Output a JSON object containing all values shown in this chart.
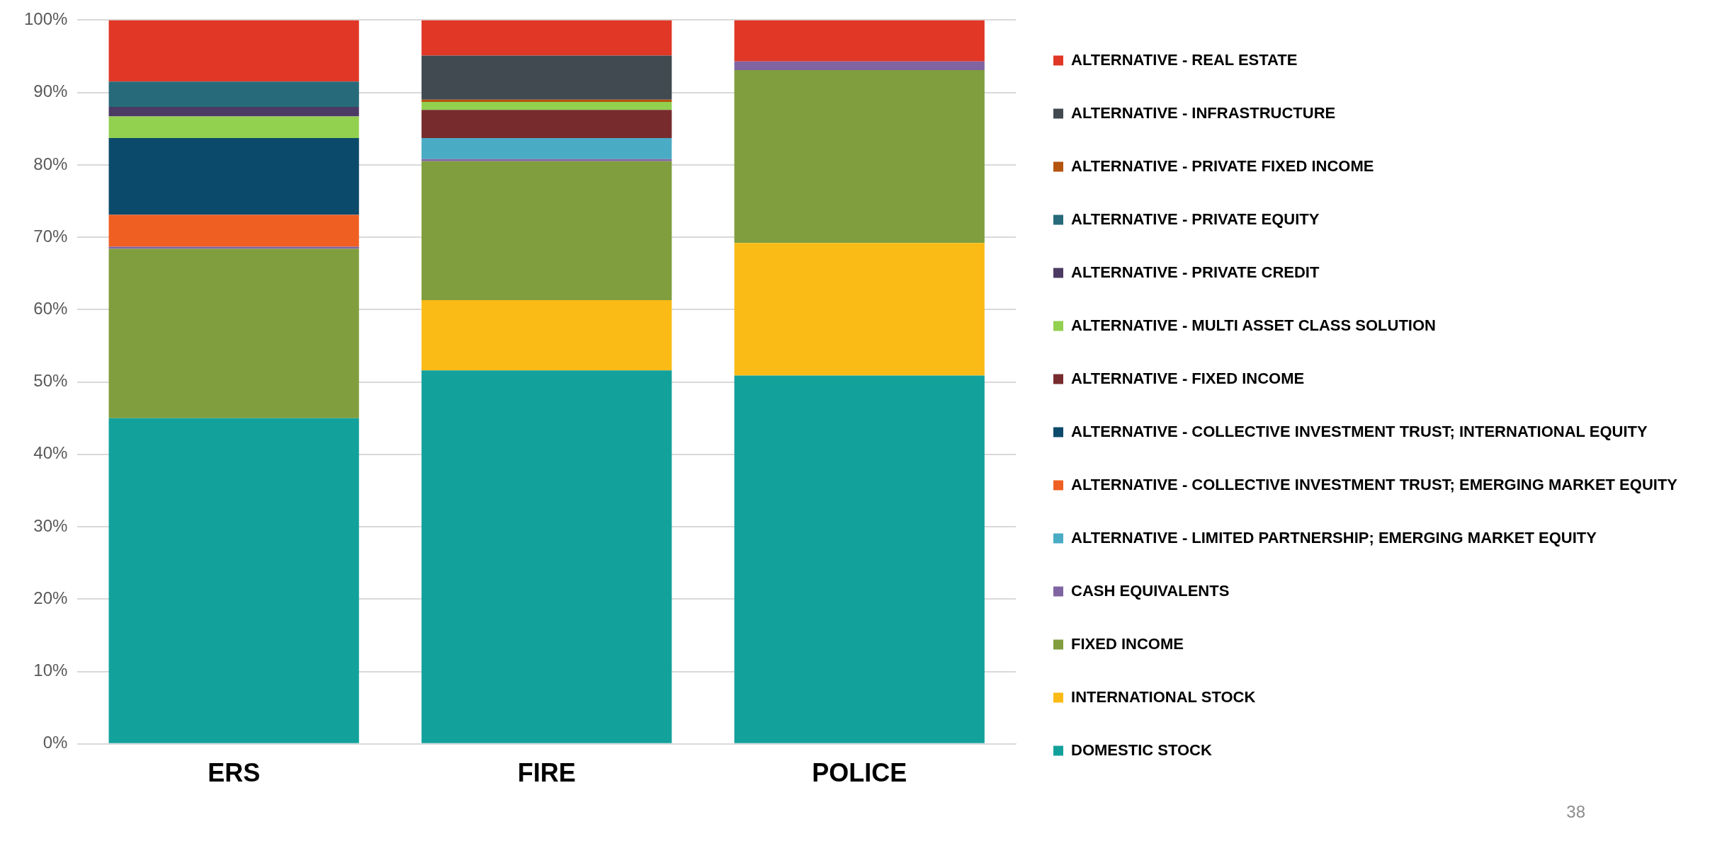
{
  "chart_data": {
    "type": "bar",
    "stacked": true,
    "categories": [
      "ERS",
      "FIRE",
      "POLICE"
    ],
    "ylim": [
      0,
      100
    ],
    "yticks": [
      {
        "value": 0,
        "label": "0%"
      },
      {
        "value": 10,
        "label": "10%"
      },
      {
        "value": 20,
        "label": "20%"
      },
      {
        "value": 30,
        "label": "30%"
      },
      {
        "value": 40,
        "label": "40%"
      },
      {
        "value": 50,
        "label": "50%"
      },
      {
        "value": 60,
        "label": "60%"
      },
      {
        "value": 70,
        "label": "70%"
      },
      {
        "value": 80,
        "label": "80%"
      },
      {
        "value": 90,
        "label": "90%"
      },
      {
        "value": 100,
        "label": "100%"
      }
    ],
    "grid": "y",
    "legend": "right",
    "annotations": [
      "38"
    ],
    "series": [
      {
        "name": "DOMESTIC STOCK",
        "color": "#13a19c",
        "values": [
          45.0,
          51.6,
          50.9
        ]
      },
      {
        "name": "INTERNATIONAL STOCK",
        "color": "#fabb16",
        "values": [
          null,
          9.7,
          18.3
        ]
      },
      {
        "name": "FIXED INCOME",
        "color": "#809e3d",
        "values": [
          23.4,
          19.2,
          23.9
        ]
      },
      {
        "name": "CASH EQUIVALENTS",
        "color": "#8064a2",
        "values": [
          0.3,
          0.3,
          1.2
        ]
      },
      {
        "name": "ALTERNATIVE - LIMITED PARTNERSHIP; EMERGING MARKET EQUITY",
        "color": "#4aabc5",
        "values": [
          null,
          2.9,
          null
        ]
      },
      {
        "name": "ALTERNATIVE - COLLECTIVE INVESTMENT TRUST; EMERGING MARKET EQUITY",
        "color": "#f05f22",
        "values": [
          4.4,
          null,
          null
        ]
      },
      {
        "name": "ALTERNATIVE - COLLECTIVE INVESTMENT TRUST; INTERNATIONAL EQUITY",
        "color": "#0b4a6a",
        "values": [
          10.6,
          null,
          null
        ]
      },
      {
        "name": "ALTERNATIVE - FIXED INCOME",
        "color": "#772b2d",
        "values": [
          null,
          3.9,
          null
        ]
      },
      {
        "name": "ALTERNATIVE - MULTI ASSET CLASS SOLUTION",
        "color": "#92d050",
        "values": [
          3.0,
          1.1,
          null
        ]
      },
      {
        "name": "ALTERNATIVE - PRIVATE CREDIT",
        "color": "#4b3a63",
        "values": [
          1.3,
          null,
          null
        ]
      },
      {
        "name": "ALTERNATIVE - PRIVATE EQUITY",
        "color": "#276a7a",
        "values": [
          3.5,
          null,
          null
        ]
      },
      {
        "name": "ALTERNATIVE - PRIVATE FIXED INCOME",
        "color": "#b5540d",
        "values": [
          null,
          0.3,
          null
        ]
      },
      {
        "name": "ALTERNATIVE - INFRASTRUCTURE",
        "color": "#404a50",
        "values": [
          null,
          6.1,
          null
        ]
      },
      {
        "name": "ALTERNATIVE - REAL ESTATE",
        "color": "#e03726",
        "values": [
          8.5,
          4.9,
          5.7
        ]
      }
    ]
  }
}
